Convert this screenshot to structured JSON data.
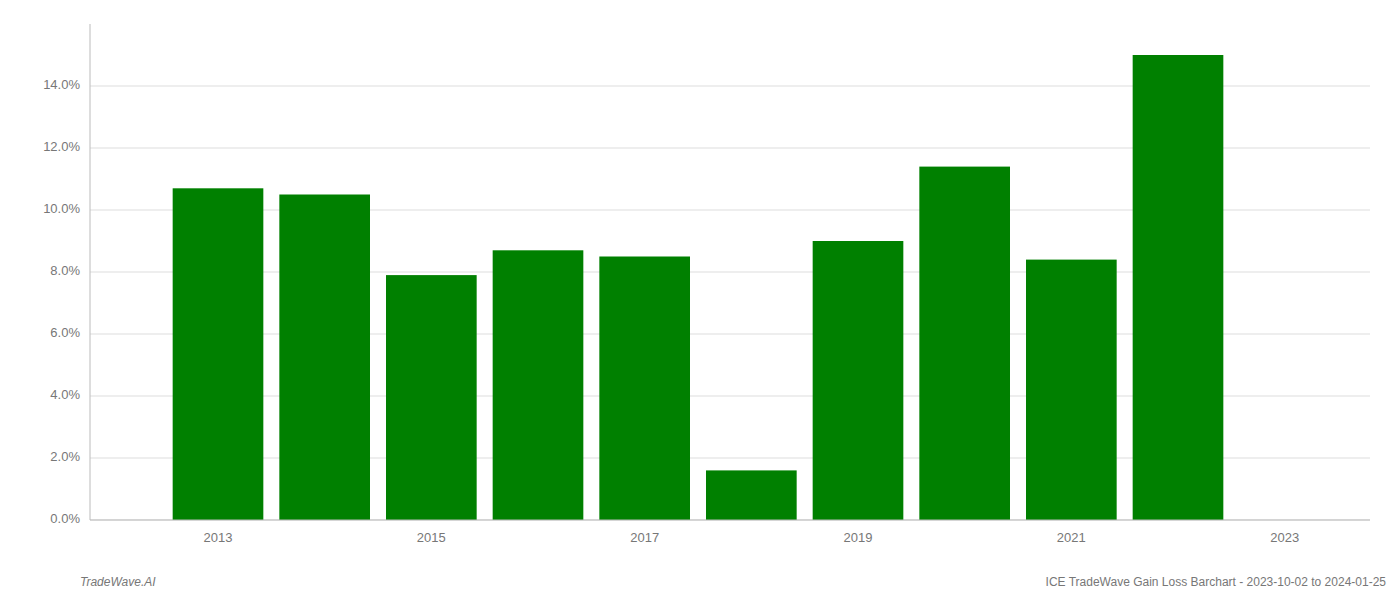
{
  "chart_data": {
    "type": "bar",
    "x": [
      2013,
      2014,
      2015,
      2016,
      2017,
      2018,
      2019,
      2020,
      2021,
      2022
    ],
    "values": [
      0.107,
      0.105,
      0.079,
      0.087,
      0.085,
      0.016,
      0.09,
      0.114,
      0.084,
      0.15
    ],
    "color": "#008000",
    "xlim": [
      2011.8,
      2023.8
    ],
    "xticks": [
      2013,
      2015,
      2017,
      2019,
      2021,
      2023
    ],
    "ylim": [
      0.0,
      0.16
    ],
    "yticks": [
      {
        "value": 0.0,
        "label": "0.0%"
      },
      {
        "value": 0.02,
        "label": "2.0%"
      },
      {
        "value": 0.04,
        "label": "4.0%"
      },
      {
        "value": 0.06,
        "label": "6.0%"
      },
      {
        "value": 0.08,
        "label": "8.0%"
      },
      {
        "value": 0.1,
        "label": "10.0%"
      },
      {
        "value": 0.12,
        "label": "12.0%"
      },
      {
        "value": 0.14,
        "label": "14.0%"
      }
    ],
    "grid": true,
    "annotations": [
      "TradeWave.AI",
      "ICE TradeWave Gain Loss Barchart - 2023-10-02 to 2024-01-25"
    ]
  }
}
